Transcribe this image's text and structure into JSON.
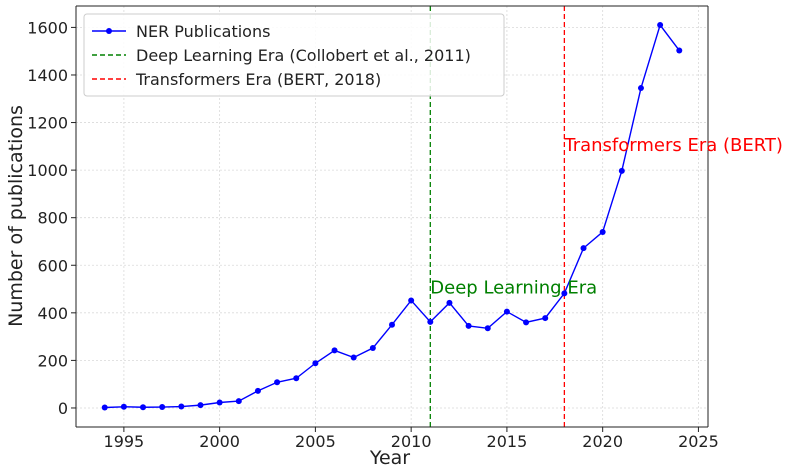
{
  "chart_data": {
    "type": "line",
    "xlabel": "Year",
    "ylabel": "Number of publications",
    "xlim": [
      1992.5,
      2025.5
    ],
    "ylim": [
      -80,
      1690
    ],
    "xticks": [
      1995,
      2000,
      2005,
      2010,
      2015,
      2020,
      2025
    ],
    "yticks": [
      0,
      200,
      400,
      600,
      800,
      1000,
      1200,
      1400,
      1600
    ],
    "grid": true,
    "legend_position": "top-left",
    "series": [
      {
        "name": "NER Publications",
        "color": "#0000ff",
        "marker": "circle",
        "x": [
          1994,
          1995,
          1996,
          1997,
          1998,
          1999,
          2000,
          2001,
          2002,
          2003,
          2004,
          2005,
          2006,
          2007,
          2008,
          2009,
          2010,
          2011,
          2012,
          2013,
          2014,
          2015,
          2016,
          2017,
          2018,
          2019,
          2020,
          2021,
          2022,
          2023,
          2024
        ],
        "values": [
          2,
          5,
          3,
          4,
          6,
          12,
          23,
          29,
          72,
          108,
          125,
          188,
          242,
          212,
          252,
          350,
          452,
          362,
          442,
          345,
          335,
          405,
          360,
          378,
          482,
          672,
          740,
          997,
          1345,
          1610,
          1503
        ]
      }
    ],
    "reference_lines": [
      {
        "name": "Deep Learning Era (Collobert et al., 2011)",
        "x": 2011,
        "color": "#008000",
        "annotation": "Deep Learning Era",
        "annotation_y": 510
      },
      {
        "name": "Transformers Era (BERT, 2018)",
        "x": 2018,
        "color": "#ff0000",
        "annotation": "Transformers Era (BERT)",
        "annotation_y": 1110
      }
    ]
  }
}
